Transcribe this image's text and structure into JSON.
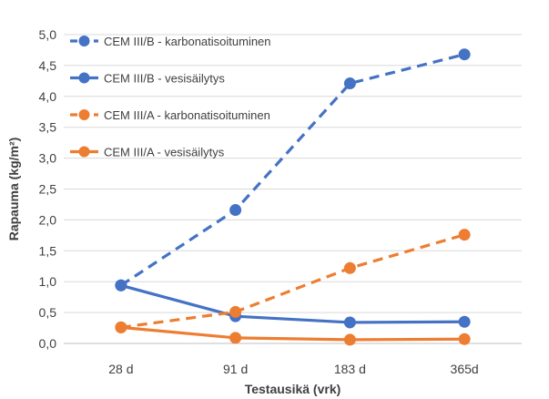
{
  "chart_data": {
    "type": "line",
    "title": "",
    "xlabel": "Testausikä (vrk)",
    "ylabel": "Rapauma (kg/m²)",
    "categories": [
      "28 d",
      "91 d",
      "183 d",
      "365d"
    ],
    "ylim": [
      0,
      5
    ],
    "yticks": [
      "0,0",
      "0,5",
      "1,0",
      "1,5",
      "2,0",
      "2,5",
      "3,0",
      "3,5",
      "4,0",
      "4,5",
      "5,0"
    ],
    "grid": true,
    "legend_position": "top-left",
    "series": [
      {
        "name": "CEM III/B - karbonatisoituminen",
        "values": [
          0.94,
          2.16,
          4.21,
          4.68
        ],
        "color": "#4472C4",
        "dash": true
      },
      {
        "name": "CEM III/B - vesisäilytys",
        "values": [
          0.94,
          0.44,
          0.34,
          0.35
        ],
        "color": "#4472C4",
        "dash": false
      },
      {
        "name": "CEM III/A - karbonatisoituminen",
        "values": [
          0.26,
          0.51,
          1.22,
          1.76
        ],
        "color": "#ED7D31",
        "dash": true
      },
      {
        "name": "CEM III/A - vesisäilytys",
        "values": [
          0.26,
          0.09,
          0.06,
          0.07
        ],
        "color": "#ED7D31",
        "dash": false
      }
    ]
  }
}
